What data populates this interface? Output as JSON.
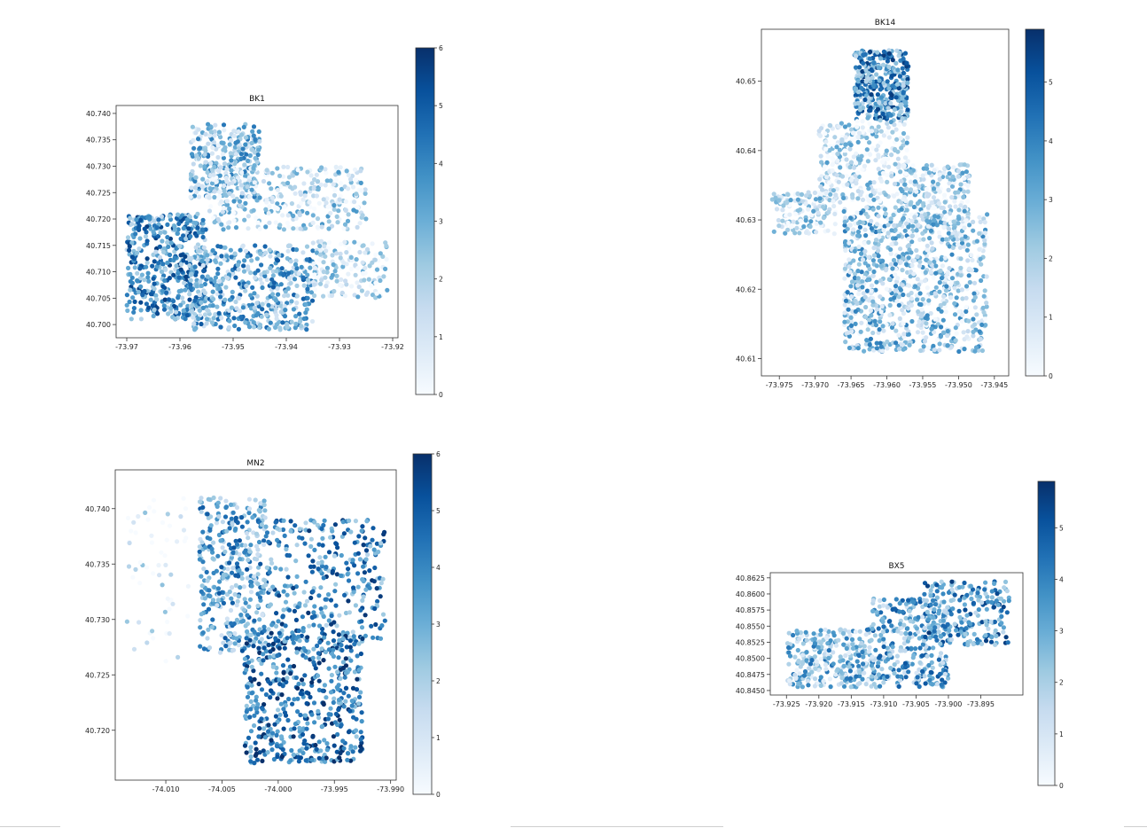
{
  "chart_data": [
    {
      "type": "scatter",
      "title": "BK1",
      "xlabel": "",
      "ylabel": "",
      "xlim": [
        -73.972,
        -73.919
      ],
      "ylim": [
        40.6975,
        40.7415
      ],
      "xticks": [
        "-73.97",
        "-73.96",
        "-73.95",
        "-73.94",
        "-73.93",
        "-73.92"
      ],
      "xtick_values": [
        -73.97,
        -73.96,
        -73.95,
        -73.94,
        -73.93,
        -73.92
      ],
      "yticks": [
        "40.700",
        "40.705",
        "40.710",
        "40.715",
        "40.720",
        "40.725",
        "40.730",
        "40.735",
        "40.740"
      ],
      "ytick_values": [
        40.7,
        40.705,
        40.71,
        40.715,
        40.72,
        40.725,
        40.73,
        40.735,
        40.74
      ],
      "colorbar": {
        "ticks": [
          "0",
          "1",
          "2",
          "3",
          "4",
          "5",
          "6"
        ],
        "tick_values": [
          0,
          1,
          2,
          3,
          4,
          5,
          6
        ],
        "range": [
          0,
          6
        ],
        "colormap": "Blues"
      },
      "grid": false,
      "regions": [
        {
          "lon": [
            -73.958,
            -73.945
          ],
          "lat": [
            40.724,
            40.738
          ],
          "n": 300,
          "level": 2.4
        },
        {
          "lon": [
            -73.955,
            -73.925
          ],
          "lat": [
            40.718,
            40.73
          ],
          "n": 350,
          "level": 1.6
        },
        {
          "lon": [
            -73.97,
            -73.955
          ],
          "lat": [
            40.701,
            40.721
          ],
          "n": 450,
          "level": 3.6
        },
        {
          "lon": [
            -73.958,
            -73.935
          ],
          "lat": [
            40.699,
            40.715
          ],
          "n": 450,
          "level": 3.0
        },
        {
          "lon": [
            -73.935,
            -73.921
          ],
          "lat": [
            40.705,
            40.716
          ],
          "n": 160,
          "level": 1.2
        }
      ]
    },
    {
      "type": "scatter",
      "title": "BK14",
      "xlabel": "",
      "ylabel": "",
      "xlim": [
        -73.9775,
        -73.943
      ],
      "ylim": [
        40.6075,
        40.6575
      ],
      "xticks": [
        "-73.975",
        "-73.970",
        "-73.965",
        "-73.960",
        "-73.955",
        "-73.950",
        "-73.945"
      ],
      "xtick_values": [
        -73.975,
        -73.97,
        -73.965,
        -73.96,
        -73.955,
        -73.95,
        -73.945
      ],
      "yticks": [
        "40.61",
        "40.62",
        "40.63",
        "40.64",
        "40.65"
      ],
      "ytick_values": [
        40.61,
        40.62,
        40.63,
        40.64,
        40.65
      ],
      "colorbar": {
        "ticks": [
          "0",
          "1",
          "2",
          "3",
          "4",
          "5"
        ],
        "tick_values": [
          0,
          1,
          2,
          3,
          4,
          5
        ],
        "range": [
          0,
          5.9
        ],
        "colormap": "Blues"
      },
      "grid": false,
      "regions": [
        {
          "lon": [
            -73.9645,
            -73.957
          ],
          "lat": [
            40.6445,
            40.6545
          ],
          "n": 380,
          "level": 3.6
        },
        {
          "lon": [
            -73.9695,
            -73.957
          ],
          "lat": [
            40.6325,
            40.6445
          ],
          "n": 320,
          "level": 1.4
        },
        {
          "lon": [
            -73.976,
            -73.967
          ],
          "lat": [
            40.628,
            40.634
          ],
          "n": 140,
          "level": 1.3
        },
        {
          "lon": [
            -73.958,
            -73.9485
          ],
          "lat": [
            40.629,
            40.638
          ],
          "n": 240,
          "level": 1.5
        },
        {
          "lon": [
            -73.966,
            -73.957
          ],
          "lat": [
            40.611,
            40.632
          ],
          "n": 450,
          "level": 2.2
        },
        {
          "lon": [
            -73.957,
            -73.946
          ],
          "lat": [
            40.611,
            40.631
          ],
          "n": 450,
          "level": 1.9
        }
      ]
    },
    {
      "type": "scatter",
      "title": "MN2",
      "xlabel": "",
      "ylabel": "",
      "xlim": [
        -74.0145,
        -73.9895
      ],
      "ylim": [
        40.7155,
        40.7435
      ],
      "xticks": [
        "-74.010",
        "-74.005",
        "-74.000",
        "-73.995",
        "-73.990"
      ],
      "xtick_values": [
        -74.01,
        -74.005,
        -74.0,
        -73.995,
        -73.99
      ],
      "yticks": [
        "40.720",
        "40.725",
        "40.730",
        "40.735",
        "40.740"
      ],
      "ytick_values": [
        40.72,
        40.725,
        40.73,
        40.735,
        40.74
      ],
      "colorbar": {
        "ticks": [
          "0",
          "1",
          "2",
          "3",
          "4",
          "5",
          "6"
        ],
        "tick_values": [
          0,
          1,
          2,
          3,
          4,
          5,
          6
        ],
        "range": [
          0,
          6
        ],
        "colormap": "Blues"
      },
      "grid": false,
      "regions": [
        {
          "lon": [
            -74.007,
            -74.001
          ],
          "lat": [
            40.727,
            40.741
          ],
          "n": 380,
          "level": 3.2
        },
        {
          "lon": [
            -74.001,
            -73.9905
          ],
          "lat": [
            40.728,
            40.739
          ],
          "n": 320,
          "level": 3.8
        },
        {
          "lon": [
            -74.003,
            -73.9925
          ],
          "lat": [
            40.717,
            40.729
          ],
          "n": 520,
          "level": 4.3
        },
        {
          "lon": [
            -74.0135,
            -74.008
          ],
          "lat": [
            40.726,
            40.741
          ],
          "n": 60,
          "level": 0.5
        }
      ]
    },
    {
      "type": "scatter",
      "title": "BX5",
      "xlabel": "",
      "ylabel": "",
      "xlim": [
        -73.9275,
        -73.8885
      ],
      "ylim": [
        40.8443,
        40.8633
      ],
      "xticks": [
        "-73.925",
        "-73.920",
        "-73.915",
        "-73.910",
        "-73.905",
        "-73.900",
        "-73.895"
      ],
      "xtick_values": [
        -73.925,
        -73.92,
        -73.915,
        -73.91,
        -73.905,
        -73.9,
        -73.895
      ],
      "yticks": [
        "40.8450",
        "40.8475",
        "40.8500",
        "40.8525",
        "40.8550",
        "40.8575",
        "40.8600",
        "40.8625"
      ],
      "ytick_values": [
        40.845,
        40.8475,
        40.85,
        40.8525,
        40.855,
        40.8575,
        40.86,
        40.8625
      ],
      "colorbar": {
        "ticks": [
          "0",
          "1",
          "2",
          "3",
          "4",
          "5"
        ],
        "tick_values": [
          0,
          1,
          2,
          3,
          4,
          5
        ],
        "range": [
          0,
          5.9
        ],
        "colormap": "Blues"
      },
      "grid": false,
      "regions": [
        {
          "lon": [
            -73.925,
            -73.912
          ],
          "lat": [
            40.8455,
            40.8545
          ],
          "n": 280,
          "level": 2.4
        },
        {
          "lon": [
            -73.912,
            -73.9
          ],
          "lat": [
            40.8455,
            40.8595
          ],
          "n": 300,
          "level": 3.0
        },
        {
          "lon": [
            -73.904,
            -73.8905
          ],
          "lat": [
            40.852,
            40.862
          ],
          "n": 240,
          "level": 3.6
        }
      ]
    }
  ]
}
